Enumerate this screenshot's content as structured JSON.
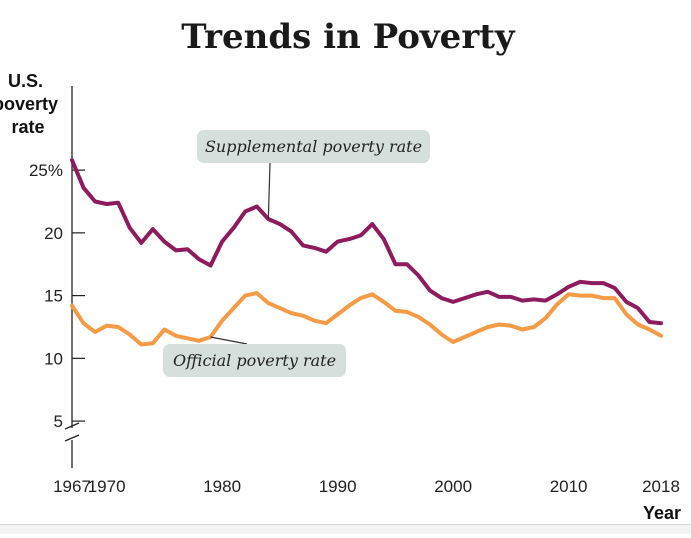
{
  "chart_data": {
    "type": "line",
    "title": "Trends in Poverty",
    "ylabel_lines": [
      "U.S.",
      "poverty",
      "rate"
    ],
    "xlabel": "Year",
    "xlim": [
      1967,
      2018
    ],
    "ylim": [
      2.5,
      27
    ],
    "y_axis_break": true,
    "y_ticks": [
      {
        "value": 25,
        "label": "25%"
      },
      {
        "value": 20,
        "label": "20"
      },
      {
        "value": 15,
        "label": "15"
      },
      {
        "value": 10,
        "label": "10"
      },
      {
        "value": 5,
        "label": "5"
      }
    ],
    "x_ticks": [
      {
        "value": 1967,
        "label": "1967"
      },
      {
        "value": 1970,
        "label": "1970"
      },
      {
        "value": 1980,
        "label": "1980"
      },
      {
        "value": 1990,
        "label": "1990"
      },
      {
        "value": 2000,
        "label": "2000"
      },
      {
        "value": 2010,
        "label": "2010"
      },
      {
        "value": 2018,
        "label": "2018"
      }
    ],
    "series": [
      {
        "name": "Supplemental poverty rate",
        "color": "#8e1b5e",
        "x": [
          1967,
          1968,
          1969,
          1970,
          1971,
          1972,
          1973,
          1974,
          1975,
          1976,
          1977,
          1978,
          1979,
          1980,
          1981,
          1982,
          1983,
          1984,
          1985,
          1986,
          1987,
          1988,
          1989,
          1990,
          1991,
          1992,
          1993,
          1994,
          1995,
          1996,
          1997,
          1998,
          1999,
          2000,
          2001,
          2002,
          2003,
          2004,
          2005,
          2006,
          2007,
          2008,
          2009,
          2010,
          2011,
          2012,
          2013,
          2014,
          2015,
          2016,
          2017,
          2018
        ],
        "values": [
          25.8,
          23.6,
          22.5,
          22.3,
          22.4,
          20.4,
          19.2,
          20.3,
          19.3,
          18.6,
          18.7,
          17.9,
          17.4,
          19.3,
          20.4,
          21.7,
          22.1,
          21.1,
          20.7,
          20.1,
          19.0,
          18.8,
          18.5,
          19.3,
          19.5,
          19.8,
          20.7,
          19.5,
          17.5,
          17.5,
          16.6,
          15.4,
          14.8,
          14.5,
          14.8,
          15.1,
          15.3,
          14.9,
          14.9,
          14.6,
          14.7,
          14.6,
          15.1,
          15.7,
          16.1,
          16.0,
          16.0,
          15.6,
          14.5,
          14.0,
          12.9,
          12.8
        ]
      },
      {
        "name": "Official poverty rate",
        "color": "#f59a45",
        "x": [
          1967,
          1968,
          1969,
          1970,
          1971,
          1972,
          1973,
          1974,
          1975,
          1976,
          1977,
          1978,
          1979,
          1980,
          1981,
          1982,
          1983,
          1984,
          1985,
          1986,
          1987,
          1988,
          1989,
          1990,
          1991,
          1992,
          1993,
          1994,
          1995,
          1996,
          1997,
          1998,
          1999,
          2000,
          2001,
          2002,
          2003,
          2004,
          2005,
          2006,
          2007,
          2008,
          2009,
          2010,
          2011,
          2012,
          2013,
          2014,
          2015,
          2016,
          2017,
          2018
        ],
        "values": [
          14.2,
          12.8,
          12.1,
          12.6,
          12.5,
          11.9,
          11.1,
          11.2,
          12.3,
          11.8,
          11.6,
          11.4,
          11.7,
          13.0,
          14.0,
          15.0,
          15.2,
          14.4,
          14.0,
          13.6,
          13.4,
          13.0,
          12.8,
          13.5,
          14.2,
          14.8,
          15.1,
          14.5,
          13.8,
          13.7,
          13.3,
          12.7,
          11.9,
          11.3,
          11.7,
          12.1,
          12.5,
          12.7,
          12.6,
          12.3,
          12.5,
          13.2,
          14.3,
          15.1,
          15.0,
          15.0,
          14.8,
          14.8,
          13.5,
          12.7,
          12.3,
          11.8
        ]
      }
    ],
    "annotations": [
      {
        "text": "Supplemental poverty rate",
        "series": 0,
        "at_x": 1984
      },
      {
        "text": "Official poverty rate",
        "series": 1,
        "at_x": 1979
      }
    ],
    "grid": false,
    "legend": "none"
  }
}
